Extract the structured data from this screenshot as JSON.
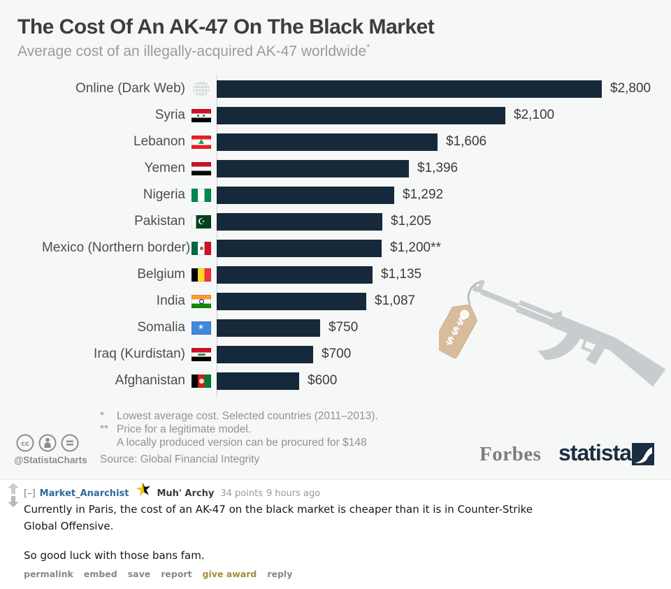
{
  "infographic": {
    "title": "The Cost Of An AK-47 On The Black Market",
    "subtitle": "Average cost of an illegally-acquired AK-47 worldwide",
    "subtitle_mark": "*",
    "fn1_mark": "*",
    "fn1_text": "Lowest average cost. Selected countries (2011–2013).",
    "fn2_mark": "**",
    "fn2_text": "Price for a legitimate model.",
    "fn3_text": "A locally produced version can be procured for $148",
    "source": "Source: Global Financial Integrity",
    "credit_handle": "@StatistaCharts",
    "forbes_logo_text": "Forbes",
    "statista_logo_text": "statista",
    "price_tag_text": "$$$",
    "background_color": "#f6f7f7"
  },
  "chart_data": {
    "type": "bar",
    "orientation": "horizontal",
    "title": "The Cost Of An AK-47 On The Black Market",
    "subtitle": "Average cost of an illegally-acquired AK-47 worldwide*",
    "xlim": [
      0,
      2800
    ],
    "grid": false,
    "legend": null,
    "bar_color": "#15293b",
    "categories": [
      "Online (Dark Web)",
      "Syria",
      "Lebanon",
      "Yemen",
      "Nigeria",
      "Pakistan",
      "Mexico (Northern border)",
      "Belgium",
      "India",
      "Somalia",
      "Iraq (Kurdistan)",
      "Afghanistan"
    ],
    "values": [
      2800,
      2100,
      1606,
      1396,
      1292,
      1205,
      1200,
      1135,
      1087,
      750,
      700,
      600
    ],
    "value_labels": [
      "$2,800",
      "$2,100",
      "$1,606",
      "$1,396",
      "$1,292",
      "$1,205",
      "$1,200**",
      "$1,135",
      "$1,087",
      "$750",
      "$700",
      "$600"
    ],
    "icons": [
      "globe",
      "syria",
      "lebanon",
      "yemen",
      "nigeria",
      "pakistan",
      "mexico",
      "belgium",
      "india",
      "somalia",
      "iraq",
      "afghanistan"
    ]
  },
  "comment": {
    "collapse_label": "[–]",
    "username": "Market_Anarchist",
    "flair_text": "Muh' Archy",
    "score": "34 points",
    "timestamp": "9 hours ago",
    "paragraph1": "Currently in Paris, the cost of an AK-47 on the black market is cheaper than it is in Counter-Strike Global Offensive.",
    "paragraph2": "So good luck with those bans fam.",
    "actions": [
      "permalink",
      "embed",
      "save",
      "report",
      "give award",
      "reply"
    ],
    "username_color": "#336699",
    "award_color": "#a58c3a"
  }
}
